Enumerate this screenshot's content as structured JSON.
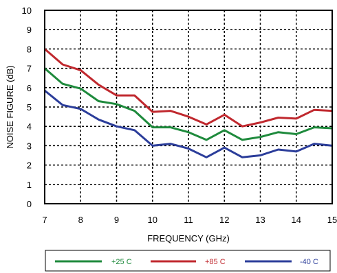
{
  "chart_data": {
    "type": "line",
    "title": "",
    "xlabel": "FREQUENCY (GHz)",
    "ylabel": "NOISE FIGURE (dB)",
    "xlim": [
      7,
      15
    ],
    "ylim": [
      0,
      10
    ],
    "x_ticks": [
      "7",
      "8",
      "9",
      "10",
      "11",
      "12",
      "13",
      "14",
      "15"
    ],
    "y_ticks": [
      "0",
      "1",
      "2",
      "3",
      "4",
      "5",
      "6",
      "7",
      "8",
      "9",
      "10"
    ],
    "grid": true,
    "legend_position": "bottom",
    "x": [
      7,
      7.5,
      8,
      8.5,
      9,
      9.5,
      10,
      10.5,
      11,
      11.5,
      12,
      12.5,
      13,
      13.5,
      14,
      14.5,
      15
    ],
    "series": [
      {
        "name": "+25 C",
        "color": "#1e8a3c",
        "values": [
          7.0,
          6.2,
          5.95,
          5.3,
          5.15,
          4.8,
          3.95,
          3.95,
          3.7,
          3.3,
          3.8,
          3.3,
          3.45,
          3.7,
          3.6,
          3.95,
          3.9
        ]
      },
      {
        "name": "+85 C",
        "color": "#c0282e",
        "values": [
          8.0,
          7.2,
          6.9,
          6.15,
          5.6,
          5.6,
          4.75,
          4.8,
          4.5,
          4.1,
          4.6,
          4.0,
          4.2,
          4.45,
          4.4,
          4.85,
          4.8
        ]
      },
      {
        "name": "-40 C",
        "color": "#2b3d9a",
        "values": [
          5.85,
          5.1,
          4.9,
          4.35,
          4.0,
          3.8,
          3.0,
          3.1,
          2.85,
          2.4,
          2.9,
          2.4,
          2.5,
          2.8,
          2.7,
          3.1,
          3.0
        ]
      }
    ]
  }
}
